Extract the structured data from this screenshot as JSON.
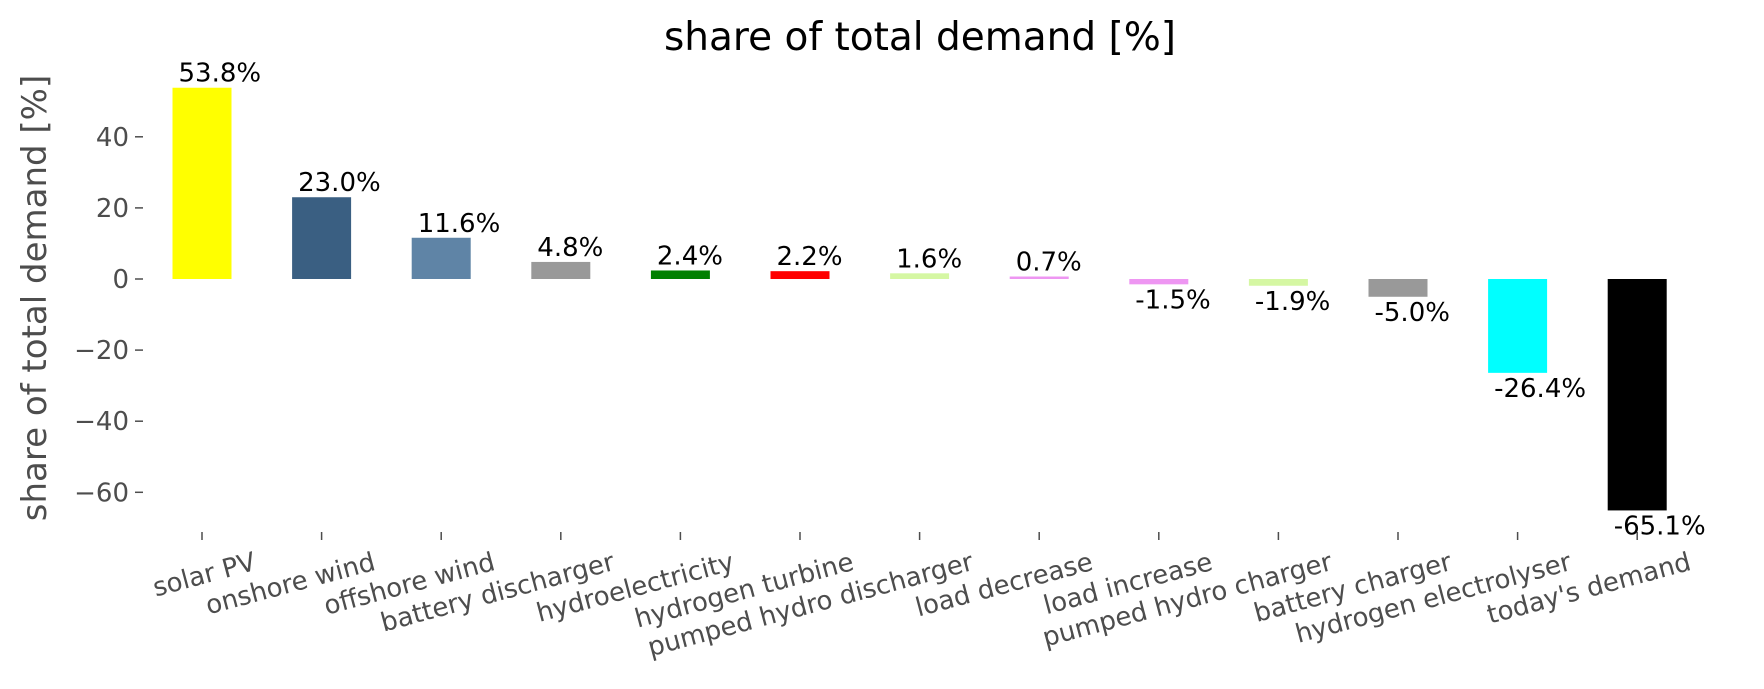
{
  "chart_data": {
    "type": "bar",
    "title": "share of total demand [%]",
    "ylabel": "share of total demand [%]",
    "xlabel": "",
    "ylim": [
      -72,
      58
    ],
    "yticks": [
      40,
      20,
      0,
      -20,
      -40,
      -60
    ],
    "ytick_labels": [
      "40",
      "20",
      "0",
      "−20",
      "−40",
      "−60"
    ],
    "grid": false,
    "categories": [
      "solar PV",
      "onshore wind",
      "offshore wind",
      "battery discharger",
      "hydroelectricity",
      "hydrogen turbine",
      "pumped hydro discharger",
      "load decrease",
      "load increase",
      "pumped hydro charger",
      "battery charger",
      "hydrogen electrolyser",
      "today's demand"
    ],
    "values": [
      53.8,
      23.0,
      11.6,
      4.8,
      2.4,
      2.2,
      1.6,
      0.7,
      -1.5,
      -1.9,
      -5.0,
      -26.4,
      -65.1
    ],
    "data_labels": [
      "53.8%",
      "23.0%",
      "11.6%",
      "4.8%",
      "2.4%",
      "2.2%",
      "1.6%",
      "0.7%",
      "-1.5%",
      "-1.9%",
      "-5.0%",
      "-26.4%",
      "-65.1%"
    ],
    "colors": [
      "#ffff00",
      "#3a5f82",
      "#5f84a6",
      "#999999",
      "#008000",
      "#ff0000",
      "#d5f7a3",
      "#ee96f2",
      "#ee96f2",
      "#d5f7a3",
      "#999999",
      "#00ffff",
      "#000000"
    ]
  }
}
